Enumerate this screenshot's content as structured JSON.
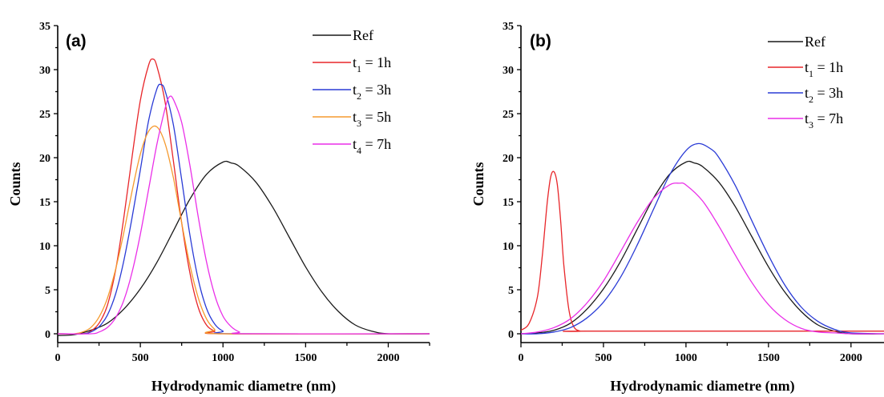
{
  "chart_data": [
    {
      "type": "line",
      "panel_label": "(a)",
      "xlabel": "Hydrodynamic diametre (nm)",
      "ylabel": "Counts",
      "xlim": [
        0,
        2250
      ],
      "ylim": [
        -1,
        35
      ],
      "xticks": [
        0,
        500,
        1000,
        1500,
        2000
      ],
      "yticks": [
        0,
        5,
        10,
        15,
        20,
        25,
        30,
        35
      ],
      "legend_position": "top-right",
      "series": [
        {
          "name": "Ref",
          "legend": {
            "base": "Ref",
            "sub": "",
            "rest": ""
          },
          "color": "#1a1a1a",
          "x": [
            0,
            100,
            200,
            300,
            400,
            500,
            600,
            700,
            800,
            900,
            1000,
            1050,
            1100,
            1200,
            1300,
            1400,
            1500,
            1600,
            1700,
            1800,
            1900,
            2000,
            2250
          ],
          "y": [
            -0.2,
            -0.1,
            0.4,
            1.2,
            2.8,
            5.1,
            8.1,
            11.7,
            15.3,
            18.1,
            19.5,
            19.4,
            19.0,
            17.2,
            14.4,
            11.0,
            7.6,
            4.7,
            2.5,
            1.0,
            0.3,
            0.0,
            0.0
          ]
        },
        {
          "name": "t1 = 1h",
          "legend": {
            "base": "t",
            "sub": "1",
            "rest": " = 1h"
          },
          "color": "#e8262a",
          "x": [
            0,
            150,
            200,
            250,
            300,
            350,
            400,
            450,
            500,
            550,
            575,
            600,
            650,
            700,
            750,
            800,
            850,
            900,
            950,
            1000,
            2250
          ],
          "y": [
            0,
            0,
            0.3,
            1.2,
            3.2,
            7.2,
            13.2,
            20.1,
            26.5,
            30.5,
            31.2,
            30.4,
            26.3,
            19.6,
            12.6,
            6.9,
            3.0,
            1.0,
            0.3,
            0,
            0
          ]
        },
        {
          "name": "t2 = 3h",
          "legend": {
            "base": "t",
            "sub": "2",
            "rest": " = 3h"
          },
          "color": "#2a3bd6",
          "x": [
            0,
            150,
            200,
            250,
            300,
            350,
            400,
            450,
            500,
            550,
            600,
            625,
            650,
            700,
            750,
            800,
            850,
            900,
            950,
            1000,
            1050,
            2250
          ],
          "y": [
            0,
            0,
            0.2,
            0.8,
            2.1,
            4.5,
            8.3,
            13.2,
            18.6,
            24.2,
            27.8,
            28.3,
            27.6,
            23.7,
            17.5,
            11.2,
            6.2,
            2.9,
            1.1,
            0.3,
            0,
            0
          ]
        },
        {
          "name": "t3 = 5h",
          "legend": {
            "base": "t",
            "sub": "3",
            "rest": " = 5h"
          },
          "color": "#f59a2e",
          "x": [
            0,
            100,
            150,
            200,
            250,
            300,
            350,
            400,
            450,
            500,
            550,
            600,
            650,
            700,
            750,
            800,
            850,
            900,
            950,
            1000,
            2250
          ],
          "y": [
            0,
            0,
            0.2,
            0.7,
            1.9,
            4.0,
            7.3,
            11.5,
            16.2,
            20.4,
            23.0,
            23.5,
            21.6,
            17.7,
            12.6,
            7.8,
            4.1,
            1.7,
            0.5,
            0,
            0
          ]
        },
        {
          "name": "t4 = 7h",
          "legend": {
            "base": "t",
            "sub": "4",
            "rest": " = 7h"
          },
          "color": "#ea2fe8",
          "x": [
            0,
            200,
            250,
            300,
            350,
            400,
            450,
            500,
            550,
            600,
            650,
            675,
            700,
            750,
            800,
            850,
            900,
            950,
            1000,
            1050,
            1100,
            1150,
            2250
          ],
          "y": [
            0,
            0,
            0.2,
            0.7,
            1.8,
            3.8,
            7.0,
            11.3,
            16.4,
            21.5,
            25.6,
            26.9,
            26.6,
            24.0,
            19.1,
            13.3,
            8.2,
            4.4,
            2.0,
            0.8,
            0.2,
            0,
            0
          ]
        }
      ]
    },
    {
      "type": "line",
      "panel_label": "(b)",
      "xlabel": "Hydrodynamic diametre (nm)",
      "ylabel": "Counts",
      "xlim": [
        0,
        2200
      ],
      "ylim": [
        -1,
        35
      ],
      "xticks": [
        0,
        500,
        1000,
        1500,
        2000
      ],
      "yticks": [
        0,
        5,
        10,
        15,
        20,
        25,
        30,
        35
      ],
      "legend_position": "top-right",
      "series": [
        {
          "name": "Ref",
          "legend": {
            "base": "Ref",
            "sub": "",
            "rest": ""
          },
          "color": "#1a1a1a",
          "x": [
            0,
            100,
            200,
            300,
            400,
            500,
            600,
            700,
            800,
            900,
            1000,
            1050,
            1100,
            1200,
            1300,
            1400,
            1500,
            1600,
            1700,
            1800,
            1900,
            2000,
            2200
          ],
          "y": [
            0,
            0.1,
            0.4,
            1.2,
            2.8,
            5.1,
            8.1,
            11.7,
            15.3,
            18.1,
            19.5,
            19.4,
            19.0,
            17.2,
            14.4,
            11.0,
            7.6,
            4.7,
            2.5,
            1.0,
            0.3,
            0.0,
            0.0
          ]
        },
        {
          "name": "t1 = 1h",
          "legend": {
            "base": "t",
            "sub": "1",
            "rest": " = 1h"
          },
          "color": "#e8262a",
          "x": [
            0,
            50,
            100,
            130,
            160,
            180,
            200,
            220,
            240,
            260,
            290,
            320,
            360,
            400,
            2200
          ],
          "y": [
            0.4,
            1.2,
            4.2,
            9.0,
            15.0,
            17.8,
            18.4,
            17.0,
            13.0,
            7.8,
            2.8,
            0.8,
            0.3,
            0.3,
            0.3
          ]
        },
        {
          "name": "t2 = 3h",
          "legend": {
            "base": "t",
            "sub": "2",
            "rest": " = 3h"
          },
          "color": "#2a3bd6",
          "x": [
            0,
            100,
            200,
            300,
            400,
            500,
            600,
            700,
            800,
            900,
            1000,
            1075,
            1150,
            1200,
            1300,
            1400,
            1500,
            1600,
            1700,
            1800,
            1900,
            2000,
            2200
          ],
          "y": [
            0,
            0,
            0.2,
            0.7,
            1.8,
            3.6,
            6.3,
            9.9,
            14.0,
            18.0,
            20.8,
            21.6,
            21.0,
            20.0,
            16.8,
            12.8,
            8.9,
            5.5,
            3.0,
            1.4,
            0.5,
            0.1,
            0
          ]
        },
        {
          "name": "t3 = 7h",
          "legend": {
            "base": "t",
            "sub": "3",
            "rest": " = 7h"
          },
          "color": "#ea2fe8",
          "x": [
            0,
            100,
            200,
            300,
            400,
            500,
            600,
            700,
            800,
            900,
            960,
            1000,
            1100,
            1200,
            1300,
            1400,
            1500,
            1600,
            1700,
            1800,
            1900,
            2000,
            2200
          ],
          "y": [
            0,
            0.2,
            0.7,
            1.7,
            3.5,
            6.0,
            9.2,
            12.5,
            15.3,
            16.9,
            17.1,
            16.9,
            15.1,
            12.2,
            8.9,
            5.8,
            3.3,
            1.6,
            0.6,
            0.2,
            0.1,
            0,
            0
          ]
        }
      ]
    }
  ]
}
